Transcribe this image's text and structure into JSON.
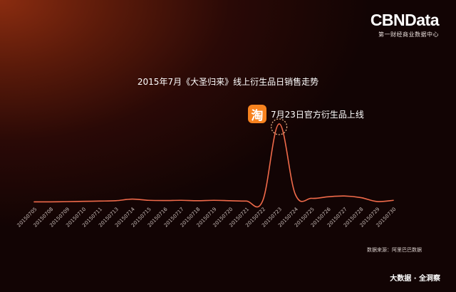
{
  "brand": {
    "name": "CBNData",
    "tagline": "第一财经商业数据中心"
  },
  "footer": {
    "source": "数据来源：阿里巴巴数据",
    "slogan": "大数据 · 全洞察"
  },
  "colors": {
    "line": "#f06a4a",
    "annotation_ring": "#f2b98e",
    "taobao_orange": "#f7821f"
  },
  "chart_data": {
    "type": "line",
    "title": "2015年7月《大圣归来》线上衍生品日销售走势",
    "xlabel": "",
    "ylabel": "",
    "y_axis_labels_shown": false,
    "grid": false,
    "categories": [
      "20150705",
      "20150708",
      "20150709",
      "20150710",
      "20150711",
      "20150713",
      "20150714",
      "20150715",
      "20150716",
      "20150717",
      "20150718",
      "20150719",
      "20150720",
      "20150721",
      "20150722",
      "20150723",
      "20150724",
      "20150725",
      "20150726",
      "20150727",
      "20150728",
      "20150729",
      "20150730"
    ],
    "series": [
      {
        "values": [
          0.5,
          0.5,
          0.8,
          1.2,
          1.5,
          2,
          4,
          2.5,
          2.2,
          2.5,
          2,
          2.5,
          2,
          1.5,
          2,
          100,
          10,
          5,
          7,
          8,
          6,
          1,
          2.5
        ]
      }
    ],
    "ylim": [
      0,
      100
    ],
    "annotation": {
      "category": "20150723",
      "text": "7月23日官方衍生品上线",
      "icon": "taobao-icon",
      "icon_glyph": "淘"
    }
  }
}
